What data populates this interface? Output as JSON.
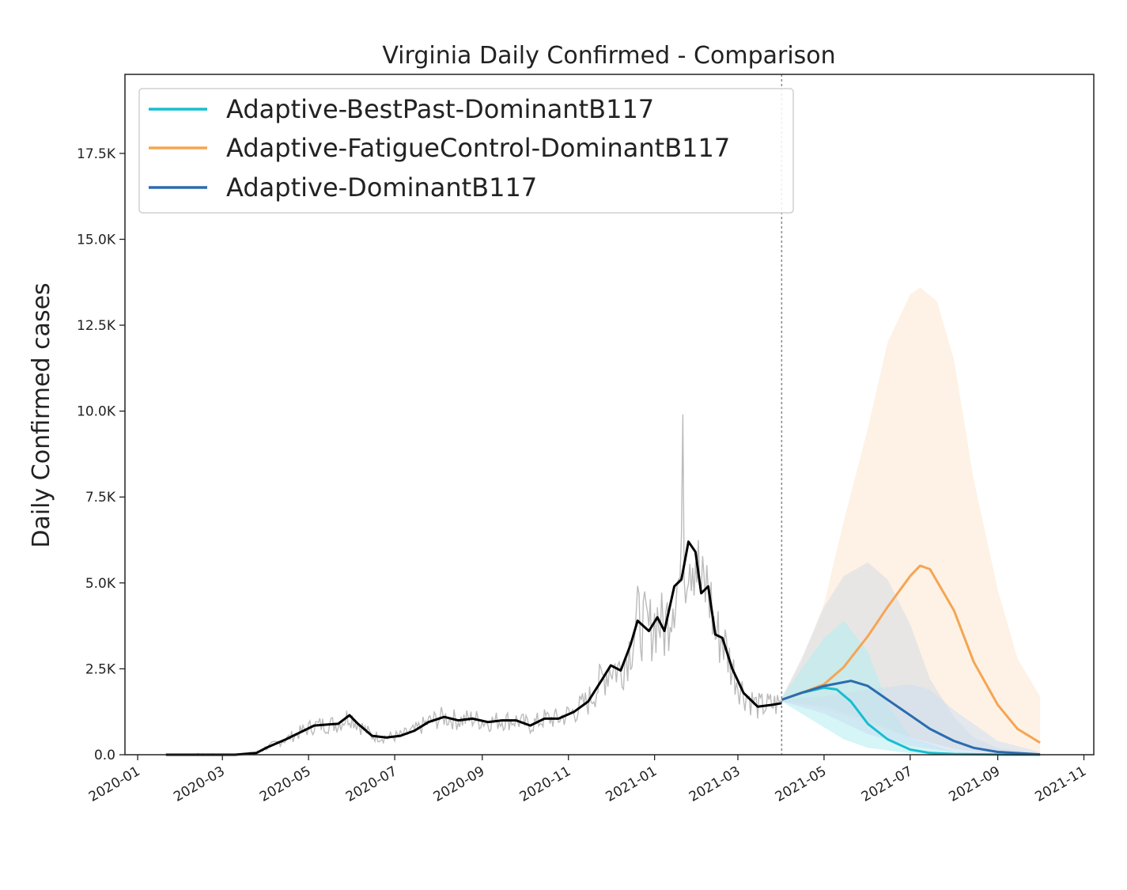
{
  "chart_data": {
    "type": "line",
    "title": "Virginia Daily Confirmed - Comparison",
    "xlabel": "",
    "ylabel": "Daily Confirmed cases",
    "x_range": [
      "2019-12-23",
      "2021-11-08"
    ],
    "ylim": [
      0,
      19800
    ],
    "grid": false,
    "legend_position": "top-left",
    "forecast_start": "2021-04-01",
    "x_ticks": [
      "2020-01-01",
      "2020-03-01",
      "2020-05-01",
      "2020-07-01",
      "2020-09-01",
      "2020-11-01",
      "2021-01-01",
      "2021-03-01",
      "2021-05-01",
      "2021-07-01",
      "2021-09-01",
      "2021-11-01"
    ],
    "x_tick_labels": [
      "2020-01",
      "2020-03",
      "2020-05",
      "2020-07",
      "2020-09",
      "2020-11",
      "2021-01",
      "2021-03",
      "2021-05",
      "2021-07",
      "2021-09",
      "2021-11"
    ],
    "y_ticks": [
      0,
      2500,
      5000,
      7500,
      10000,
      12500,
      15000,
      17500
    ],
    "y_tick_labels": [
      "0.0",
      "2.5K",
      "5.0K",
      "7.5K",
      "10.0K",
      "12.5K",
      "15.0K",
      "17.5K"
    ],
    "observed": {
      "color": "#000000",
      "raw_color": "#bbbbbb",
      "points": [
        [
          "2020-01-21",
          0
        ],
        [
          "2020-02-15",
          0
        ],
        [
          "2020-03-10",
          0
        ],
        [
          "2020-03-25",
          50
        ],
        [
          "2020-04-01",
          200
        ],
        [
          "2020-04-15",
          450
        ],
        [
          "2020-04-25",
          650
        ],
        [
          "2020-05-05",
          850
        ],
        [
          "2020-05-15",
          880
        ],
        [
          "2020-05-22",
          900
        ],
        [
          "2020-05-30",
          1150
        ],
        [
          "2020-06-05",
          900
        ],
        [
          "2020-06-15",
          550
        ],
        [
          "2020-06-25",
          500
        ],
        [
          "2020-07-05",
          550
        ],
        [
          "2020-07-15",
          700
        ],
        [
          "2020-07-25",
          950
        ],
        [
          "2020-08-05",
          1100
        ],
        [
          "2020-08-15",
          1000
        ],
        [
          "2020-08-25",
          1050
        ],
        [
          "2020-09-05",
          950
        ],
        [
          "2020-09-15",
          1000
        ],
        [
          "2020-09-25",
          1000
        ],
        [
          "2020-10-05",
          850
        ],
        [
          "2020-10-15",
          1050
        ],
        [
          "2020-10-25",
          1050
        ],
        [
          "2020-11-05",
          1250
        ],
        [
          "2020-11-15",
          1550
        ],
        [
          "2020-11-25",
          2200
        ],
        [
          "2020-12-01",
          2600
        ],
        [
          "2020-12-08",
          2450
        ],
        [
          "2020-12-15",
          3200
        ],
        [
          "2020-12-20",
          3900
        ],
        [
          "2020-12-28",
          3600
        ],
        [
          "2021-01-03",
          4000
        ],
        [
          "2021-01-08",
          3600
        ],
        [
          "2021-01-15",
          4900
        ],
        [
          "2021-01-20",
          5100
        ],
        [
          "2021-01-25",
          6200
        ],
        [
          "2021-01-30",
          5900
        ],
        [
          "2021-02-03",
          4700
        ],
        [
          "2021-02-08",
          4900
        ],
        [
          "2021-02-13",
          3500
        ],
        [
          "2021-02-18",
          3400
        ],
        [
          "2021-02-25",
          2500
        ],
        [
          "2021-03-05",
          1800
        ],
        [
          "2021-03-15",
          1400
        ],
        [
          "2021-03-25",
          1450
        ],
        [
          "2021-04-01",
          1500
        ]
      ]
    },
    "series": [
      {
        "name": "Adaptive-BestPast-DominantB117",
        "color": "#17becf",
        "points": [
          [
            "2021-04-01",
            1600
          ],
          [
            "2021-04-15",
            1800
          ],
          [
            "2021-05-01",
            1950
          ],
          [
            "2021-05-10",
            1900
          ],
          [
            "2021-05-20",
            1550
          ],
          [
            "2021-06-01",
            900
          ],
          [
            "2021-06-15",
            450
          ],
          [
            "2021-07-01",
            150
          ],
          [
            "2021-07-15",
            50
          ],
          [
            "2021-08-01",
            20
          ],
          [
            "2021-09-01",
            5
          ],
          [
            "2021-10-01",
            0
          ]
        ],
        "band_upper": [
          [
            "2021-04-01",
            1650
          ],
          [
            "2021-04-15",
            2500
          ],
          [
            "2021-05-01",
            3400
          ],
          [
            "2021-05-15",
            3900
          ],
          [
            "2021-06-01",
            3000
          ],
          [
            "2021-06-15",
            1500
          ],
          [
            "2021-07-01",
            500
          ],
          [
            "2021-08-01",
            100
          ],
          [
            "2021-09-01",
            20
          ],
          [
            "2021-10-01",
            0
          ]
        ],
        "band_lower": [
          [
            "2021-04-01",
            1550
          ],
          [
            "2021-04-15",
            1200
          ],
          [
            "2021-05-01",
            800
          ],
          [
            "2021-05-15",
            450
          ],
          [
            "2021-06-01",
            200
          ],
          [
            "2021-07-01",
            40
          ],
          [
            "2021-08-01",
            10
          ],
          [
            "2021-10-01",
            0
          ]
        ]
      },
      {
        "name": "Adaptive-FatigueControl-DominantB117",
        "color": "#f5a553",
        "points": [
          [
            "2021-04-01",
            1600
          ],
          [
            "2021-04-15",
            1800
          ],
          [
            "2021-05-01",
            2050
          ],
          [
            "2021-05-15",
            2550
          ],
          [
            "2021-06-01",
            3450
          ],
          [
            "2021-06-15",
            4300
          ],
          [
            "2021-07-01",
            5200
          ],
          [
            "2021-07-08",
            5500
          ],
          [
            "2021-07-15",
            5400
          ],
          [
            "2021-08-01",
            4200
          ],
          [
            "2021-08-15",
            2700
          ],
          [
            "2021-09-01",
            1450
          ],
          [
            "2021-09-15",
            750
          ],
          [
            "2021-10-01",
            350
          ]
        ],
        "band_upper": [
          [
            "2021-04-01",
            1650
          ],
          [
            "2021-04-15",
            2700
          ],
          [
            "2021-05-01",
            4400
          ],
          [
            "2021-05-15",
            6800
          ],
          [
            "2021-06-01",
            9500
          ],
          [
            "2021-06-15",
            12000
          ],
          [
            "2021-07-01",
            13400
          ],
          [
            "2021-07-08",
            13600
          ],
          [
            "2021-07-20",
            13200
          ],
          [
            "2021-08-01",
            11500
          ],
          [
            "2021-08-15",
            8000
          ],
          [
            "2021-09-01",
            4800
          ],
          [
            "2021-09-15",
            2800
          ],
          [
            "2021-10-01",
            1700
          ]
        ],
        "band_lower": [
          [
            "2021-04-01",
            1550
          ],
          [
            "2021-05-01",
            1300
          ],
          [
            "2021-06-01",
            900
          ],
          [
            "2021-07-01",
            500
          ],
          [
            "2021-08-01",
            200
          ],
          [
            "2021-09-01",
            60
          ],
          [
            "2021-10-01",
            20
          ]
        ]
      },
      {
        "name": "Adaptive-DominantB117",
        "color": "#2b6cb0",
        "points": [
          [
            "2021-04-01",
            1600
          ],
          [
            "2021-04-15",
            1800
          ],
          [
            "2021-05-01",
            2000
          ],
          [
            "2021-05-20",
            2150
          ],
          [
            "2021-06-01",
            2000
          ],
          [
            "2021-06-15",
            1600
          ],
          [
            "2021-07-01",
            1150
          ],
          [
            "2021-07-15",
            750
          ],
          [
            "2021-08-01",
            400
          ],
          [
            "2021-08-15",
            200
          ],
          [
            "2021-09-01",
            80
          ],
          [
            "2021-10-01",
            10
          ]
        ],
        "band_upper": [
          [
            "2021-04-01",
            1650
          ],
          [
            "2021-04-15",
            2800
          ],
          [
            "2021-05-01",
            4300
          ],
          [
            "2021-05-15",
            5200
          ],
          [
            "2021-06-01",
            5600
          ],
          [
            "2021-06-15",
            5100
          ],
          [
            "2021-07-01",
            3800
          ],
          [
            "2021-07-15",
            2200
          ],
          [
            "2021-08-01",
            1100
          ],
          [
            "2021-08-15",
            500
          ],
          [
            "2021-09-01",
            200
          ],
          [
            "2021-10-01",
            30
          ]
        ],
        "band_lower": [
          [
            "2021-04-01",
            1550
          ],
          [
            "2021-05-01",
            1400
          ],
          [
            "2021-06-01",
            1000
          ],
          [
            "2021-07-01",
            500
          ],
          [
            "2021-08-01",
            150
          ],
          [
            "2021-09-01",
            40
          ],
          [
            "2021-10-01",
            5
          ]
        ]
      }
    ],
    "extra_band": {
      "color": "#c9ddf2",
      "band_upper": [
        [
          "2021-04-01",
          1600
        ],
        [
          "2021-05-01",
          1700
        ],
        [
          "2021-06-01",
          1900
        ],
        [
          "2021-07-01",
          2050
        ],
        [
          "2021-07-15",
          1900
        ],
        [
          "2021-08-01",
          1300
        ],
        [
          "2021-09-01",
          400
        ],
        [
          "2021-10-01",
          80
        ]
      ],
      "band_lower": [
        [
          "2021-04-01",
          1550
        ],
        [
          "2021-05-01",
          1200
        ],
        [
          "2021-06-01",
          600
        ],
        [
          "2021-07-01",
          250
        ],
        [
          "2021-08-01",
          80
        ],
        [
          "2021-09-01",
          20
        ],
        [
          "2021-10-01",
          0
        ]
      ]
    }
  }
}
